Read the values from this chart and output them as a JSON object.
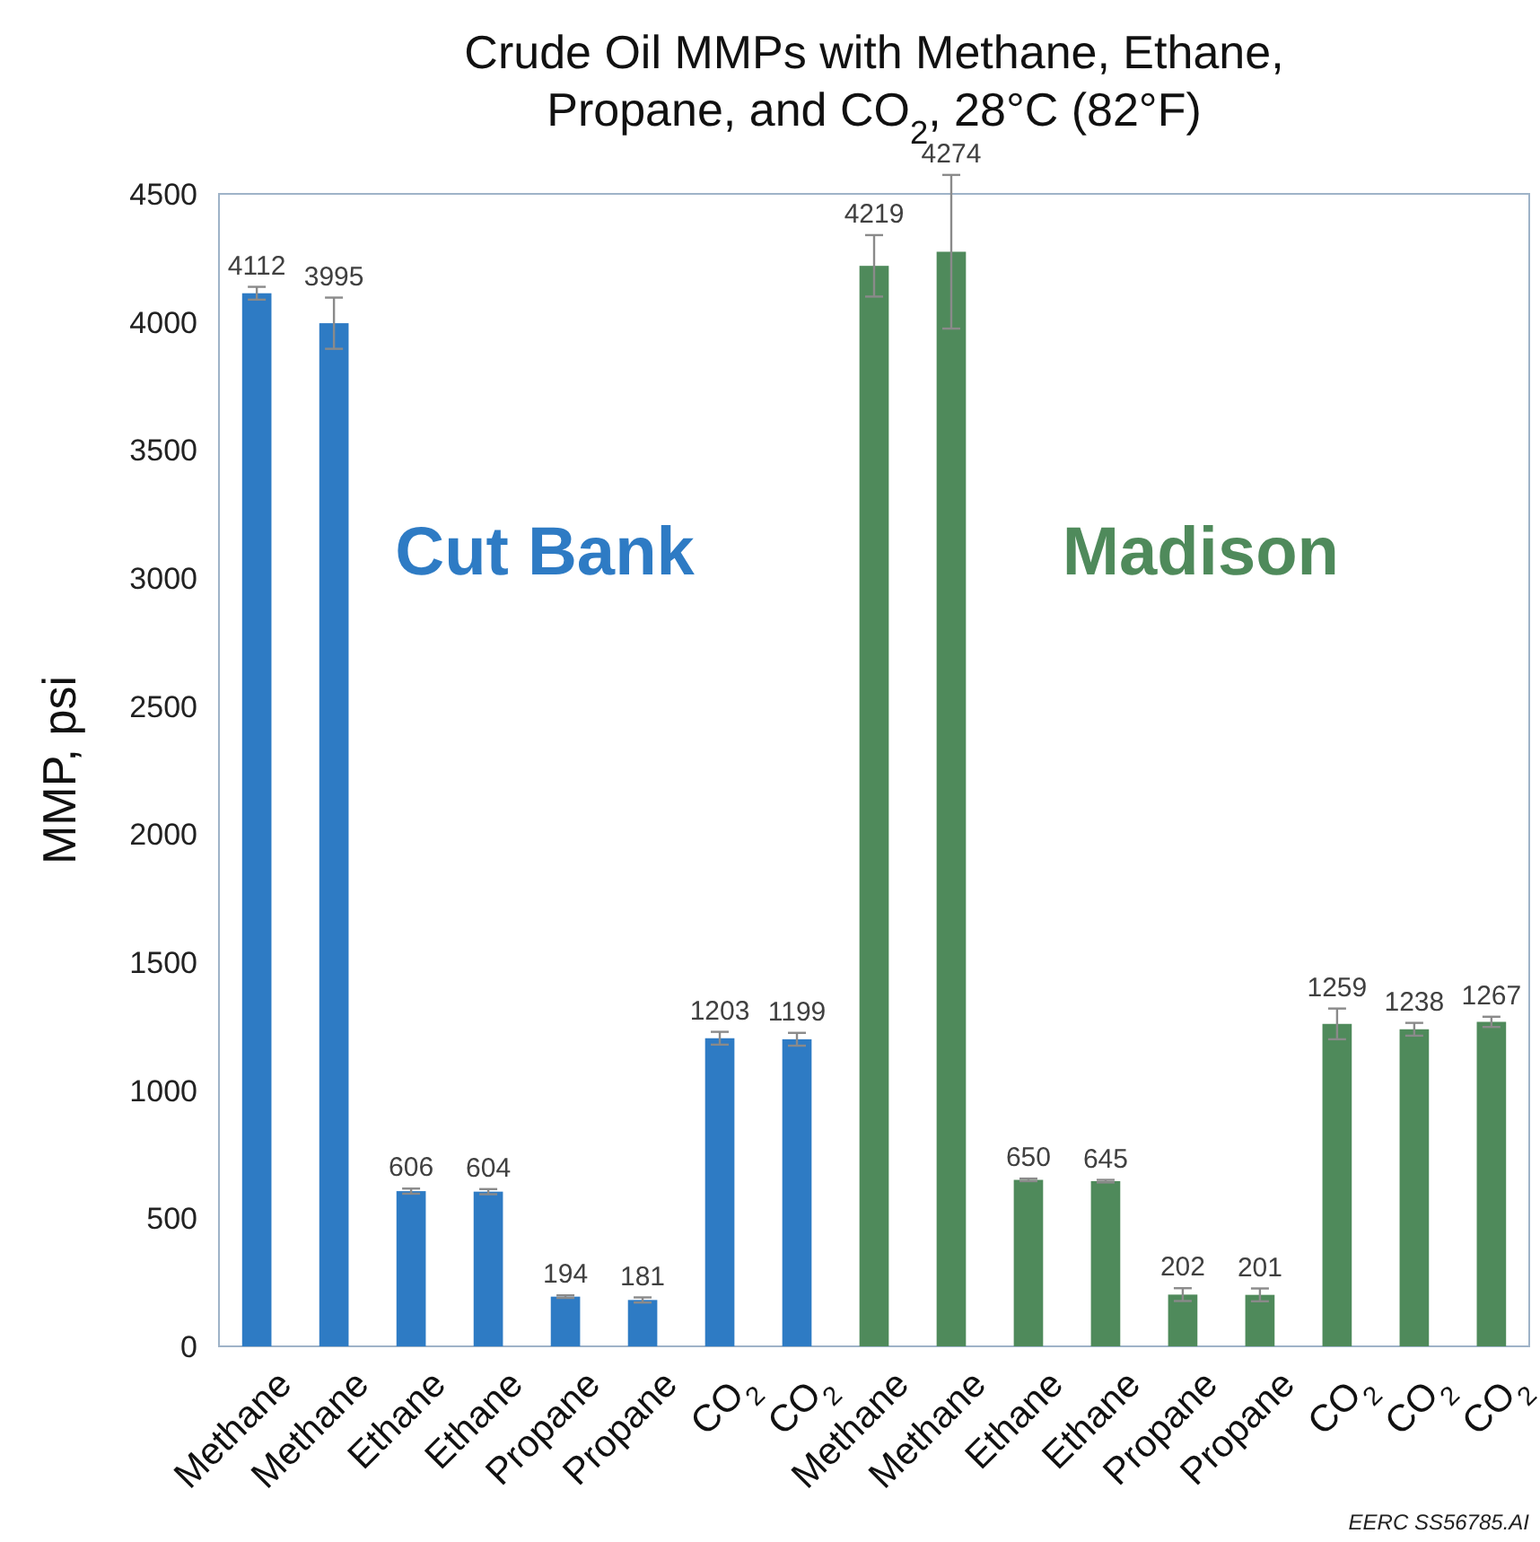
{
  "chart_data": {
    "type": "bar",
    "title": "Crude Oil MMPs with Methane, Ethane, Propane, and CO$_{2}$, 28°C (82°F)",
    "ylabel": "MMP, psi",
    "categories": [
      "Methane",
      "Methane",
      "Ethane",
      "Ethane",
      "Propane",
      "Propane",
      "CO$_{2}$",
      "CO$_{2}$",
      "Methane",
      "Methane",
      "Ethane",
      "Ethane",
      "Propane",
      "Propane",
      "CO$_{2}$",
      "CO$_{2}$",
      "CO$_{2}$"
    ],
    "series": [
      {
        "name": "Cut Bank",
        "color": "#2e7bc4",
        "values": [
          4112,
          3995,
          606,
          604,
          194,
          181,
          1203,
          1199,
          null,
          null,
          null,
          null,
          null,
          null,
          null,
          null,
          null
        ],
        "errors": [
          25,
          100,
          10,
          10,
          5,
          10,
          25,
          25,
          null,
          null,
          null,
          null,
          null,
          null,
          null,
          null,
          null
        ]
      },
      {
        "name": "Madison",
        "color": "#4f8a5b",
        "values": [
          null,
          null,
          null,
          null,
          null,
          null,
          null,
          null,
          4219,
          4274,
          650,
          645,
          202,
          201,
          1259,
          1238,
          1267
        ],
        "errors": [
          null,
          null,
          null,
          null,
          null,
          null,
          null,
          null,
          120,
          300,
          5,
          5,
          25,
          25,
          60,
          25,
          20
        ]
      }
    ],
    "ylim": [
      0,
      4500
    ],
    "yticks": [
      0,
      500,
      1000,
      1500,
      2000,
      2500,
      3000,
      3500,
      4000,
      4500
    ],
    "grid": false,
    "data_labels": true,
    "annotations": [
      "EERC SS56785.AI"
    ]
  }
}
